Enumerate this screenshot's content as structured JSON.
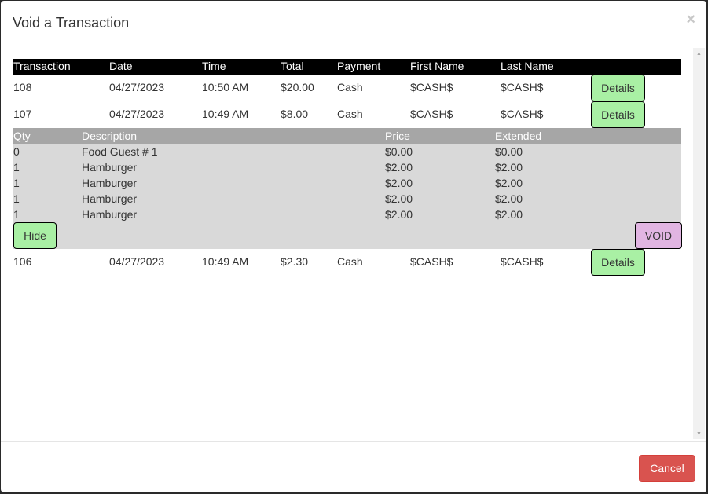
{
  "modal": {
    "title": "Void a Transaction",
    "close_icon": "×",
    "cancel_label": "Cancel"
  },
  "table": {
    "headers": {
      "transaction": "Transaction",
      "date": "Date",
      "time": "Time",
      "total": "Total",
      "payment": "Payment",
      "first_name": "First Name",
      "last_name": "Last Name"
    },
    "rows": [
      {
        "transaction": "108",
        "date": "04/27/2023",
        "time": "10:50 AM",
        "total": "$20.00",
        "payment": "Cash",
        "first_name": "$CASH$",
        "last_name": "$CASH$",
        "details_label": "Details"
      },
      {
        "transaction": "107",
        "date": "04/27/2023",
        "time": "10:49 AM",
        "total": "$8.00",
        "payment": "Cash",
        "first_name": "$CASH$",
        "last_name": "$CASH$",
        "details_label": "Details"
      },
      {
        "transaction": "106",
        "date": "04/27/2023",
        "time": "10:49 AM",
        "total": "$2.30",
        "payment": "Cash",
        "first_name": "$CASH$",
        "last_name": "$CASH$",
        "details_label": "Details"
      }
    ]
  },
  "details": {
    "headers": {
      "qty": "Qty",
      "description": "Description",
      "price": "Price",
      "extended": "Extended"
    },
    "lines": [
      {
        "qty": "0",
        "description": "Food Guest # 1",
        "price": "$0.00",
        "extended": "$0.00"
      },
      {
        "qty": "1",
        "description": "Hamburger",
        "price": "$2.00",
        "extended": "$2.00"
      },
      {
        "qty": "1",
        "description": "Hamburger",
        "price": "$2.00",
        "extended": "$2.00"
      },
      {
        "qty": "1",
        "description": "Hamburger",
        "price": "$2.00",
        "extended": "$2.00"
      },
      {
        "qty": "1",
        "description": "Hamburger",
        "price": "$2.00",
        "extended": "$2.00"
      }
    ],
    "hide_label": "Hide",
    "void_label": "VOID"
  },
  "colors": {
    "details_button": "#a9f0a4",
    "void_button": "#e1b5e2",
    "cancel_button": "#d9534f",
    "header_bg": "#000000",
    "detail_header_bg": "#a6a6a6",
    "detail_bg": "#d9d9d9"
  }
}
